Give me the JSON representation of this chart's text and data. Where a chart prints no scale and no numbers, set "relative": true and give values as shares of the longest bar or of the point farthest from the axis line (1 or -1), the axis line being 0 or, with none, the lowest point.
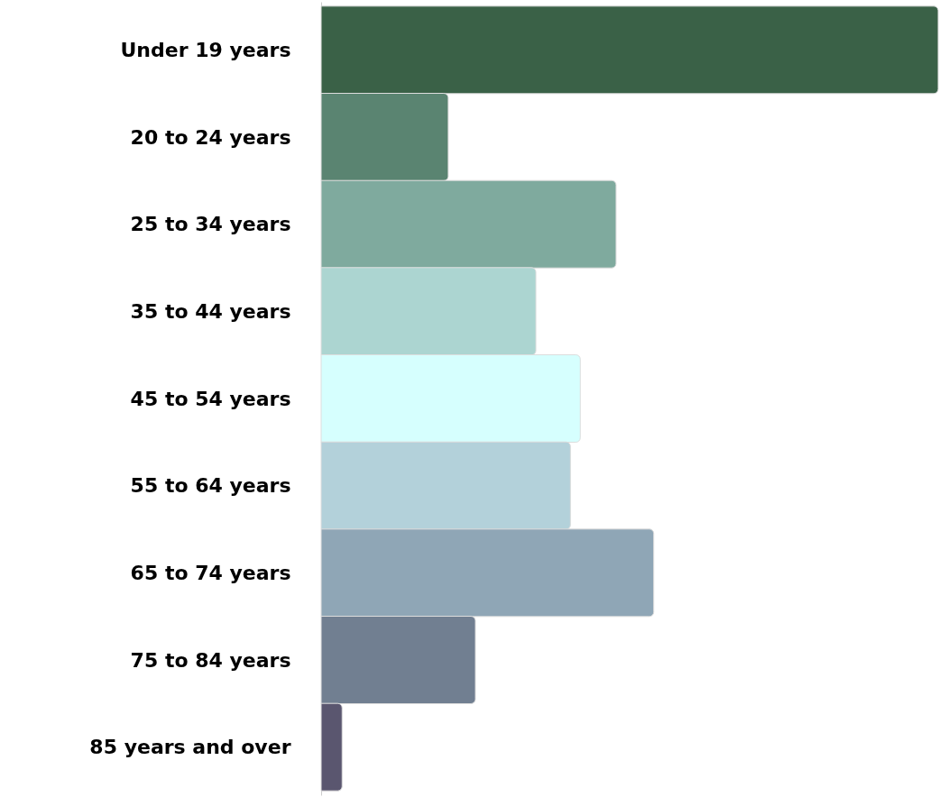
{
  "chart_data": {
    "type": "bar",
    "orientation": "horizontal",
    "relative": true,
    "categories": [
      "Under 19 years",
      "20 to 24 years",
      "25 to 34 years",
      "35 to 44 years",
      "45 to 54 years",
      "55 to 64 years",
      "65 to 74 years",
      "75 to 84 years",
      "85 years and over"
    ],
    "values": [
      1,
      0.206,
      0.478,
      0.348,
      0.42,
      0.404,
      0.539,
      0.25,
      0.034
    ],
    "colors": [
      "#3a6147",
      "#5a8471",
      "#7faa9e",
      "#acd5d1",
      "#d6fffe",
      "#b3d1da",
      "#8fa6b6",
      "#717f91",
      "#5a566f"
    ]
  }
}
